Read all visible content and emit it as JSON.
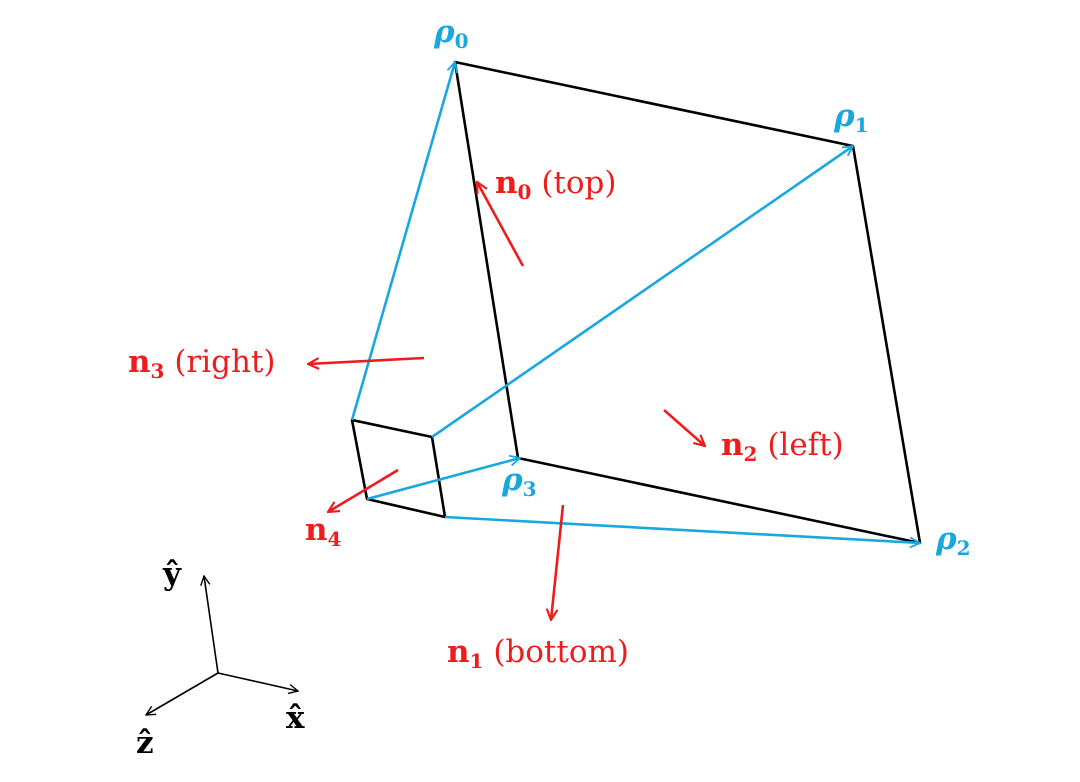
{
  "colors": {
    "frustum_edge": "#000000",
    "ray": "#1aa7e0",
    "normal": "#ee1c1c",
    "axis": "#000000"
  },
  "rays": [
    {
      "symbol": "ρ",
      "index": "0"
    },
    {
      "symbol": "ρ",
      "index": "1"
    },
    {
      "symbol": "ρ",
      "index": "2"
    },
    {
      "symbol": "ρ",
      "index": "3"
    }
  ],
  "normals": [
    {
      "symbol": "n",
      "index": "0",
      "face": "(top)"
    },
    {
      "symbol": "n",
      "index": "1",
      "face": "(bottom)"
    },
    {
      "symbol": "n",
      "index": "2",
      "face": "(left)"
    },
    {
      "symbol": "n",
      "index": "3",
      "face": "(right)"
    },
    {
      "symbol": "n",
      "index": "4",
      "face": ""
    }
  ],
  "axes": {
    "x": "x̂",
    "y": "ŷ",
    "z": "ẑ"
  }
}
